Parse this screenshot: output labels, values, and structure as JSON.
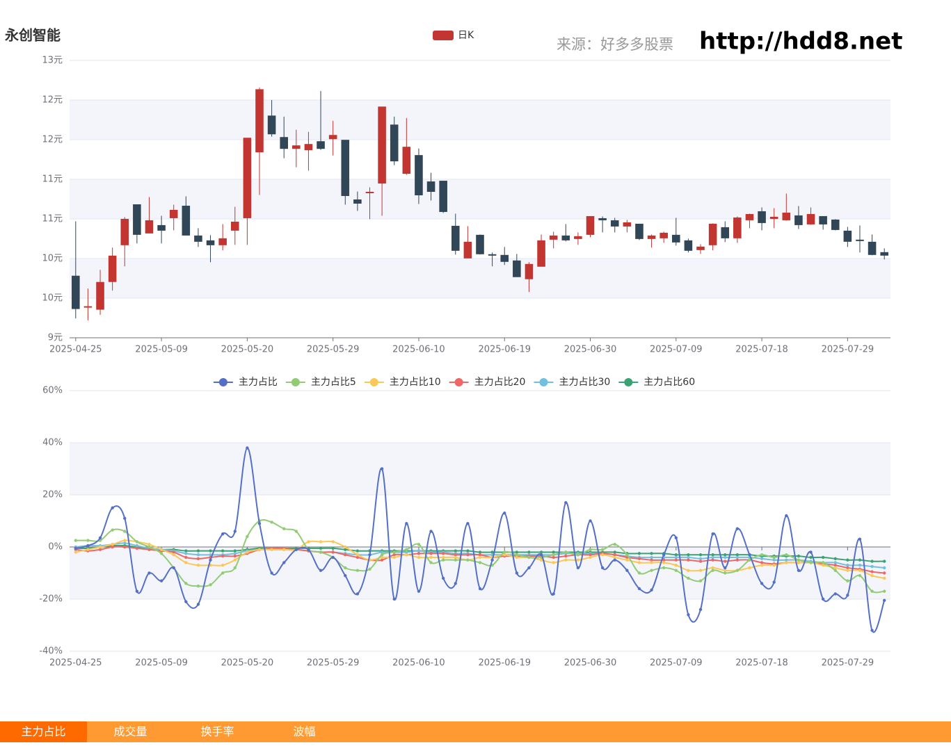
{
  "title": "永创智能",
  "source": "来源：好多多股票",
  "site": "http://hdd8.net",
  "tabs": [
    "主力占比",
    "成交量",
    "换手率",
    "波幅"
  ],
  "chart_data": [
    {
      "type": "candlestick",
      "categories": [
        "2025-04-25",
        null,
        null,
        null,
        null,
        null,
        null,
        "2025-05-09",
        null,
        null,
        null,
        null,
        null,
        null,
        "2025-05-20",
        null,
        null,
        null,
        null,
        null,
        null,
        "2025-05-29",
        null,
        null,
        null,
        null,
        null,
        null,
        "2025-06-10",
        null,
        null,
        null,
        null,
        null,
        null,
        "2025-06-19",
        null,
        null,
        null,
        null,
        null,
        null,
        "2025-06-30",
        null,
        null,
        null,
        null,
        null,
        null,
        "2025-07-09",
        null,
        null,
        null,
        null,
        null,
        null,
        "2025-07-18",
        null,
        null,
        null,
        null,
        null,
        null,
        "2025-07-29",
        null,
        null,
        null
      ],
      "series": [
        {
          "name": "日K",
          "up_color": "#c23531",
          "down_color": "#314656",
          "open": [
            9.89,
            9.44,
            9.41,
            9.81,
            10.34,
            10.92,
            10.51,
            10.62,
            10.73,
            10.9,
            10.47,
            10.4,
            10.34,
            10.55,
            10.73,
            11.68,
            12.2,
            11.89,
            11.73,
            11.71,
            11.83,
            11.87,
            11.85,
            10.99,
            11.09,
            11.23,
            12.07,
            11.37,
            11.63,
            11.25,
            11.26,
            10.61,
            10.15,
            10.48,
            10.2,
            10.19,
            10.11,
            9.85,
            10.03,
            10.42,
            10.47,
            10.43,
            10.49,
            10.72,
            10.69,
            10.61,
            10.64,
            10.43,
            10.44,
            10.48,
            10.4,
            10.27,
            10.34,
            10.59,
            10.44,
            10.7,
            10.82,
            10.72,
            10.7,
            10.76,
            10.64,
            10.75,
            10.7,
            10.54,
            10.41,
            10.38,
            10.23
          ],
          "high": [
            10.68,
            9.71,
            9.98,
            10.3,
            10.74,
            10.92,
            11.03,
            10.76,
            10.92,
            11.04,
            10.58,
            10.48,
            10.64,
            10.89,
            11.88,
            12.61,
            12.43,
            12.19,
            12.0,
            11.97,
            12.56,
            12.13,
            11.85,
            11.11,
            11.17,
            12.33,
            12.19,
            12.17,
            11.73,
            11.38,
            11.26,
            10.79,
            10.61,
            10.49,
            10.23,
            10.31,
            10.21,
            10.09,
            10.49,
            10.53,
            10.64,
            10.52,
            10.75,
            10.75,
            10.73,
            10.7,
            10.64,
            10.49,
            10.53,
            10.73,
            10.43,
            10.35,
            10.65,
            10.68,
            10.75,
            10.79,
            10.88,
            10.87,
            11.08,
            10.9,
            10.88,
            10.75,
            10.71,
            10.6,
            10.62,
            10.49,
            10.29
          ],
          "low": [
            9.28,
            9.25,
            9.33,
            9.68,
            10.03,
            10.36,
            10.51,
            10.36,
            10.55,
            10.48,
            10.31,
            10.09,
            10.26,
            10.34,
            10.34,
            11.06,
            11.9,
            11.59,
            11.46,
            11.41,
            11.71,
            11.63,
            10.92,
            10.83,
            10.71,
            10.76,
            11.49,
            11.35,
            10.93,
            10.98,
            10.8,
            10.2,
            10.15,
            10.2,
            10.03,
            10.05,
            9.88,
            9.66,
            10.03,
            10.29,
            10.39,
            10.34,
            10.45,
            10.52,
            10.52,
            10.52,
            10.41,
            10.3,
            10.37,
            10.33,
            10.23,
            10.21,
            10.26,
            10.38,
            10.37,
            10.58,
            10.55,
            10.58,
            10.69,
            10.57,
            10.63,
            10.56,
            10.55,
            10.31,
            10.23,
            10.19,
            10.13
          ],
          "close": [
            9.42,
            9.45,
            9.8,
            10.18,
            10.71,
            10.49,
            10.69,
            10.55,
            10.84,
            10.48,
            10.39,
            10.34,
            10.43,
            10.67,
            11.88,
            12.58,
            11.94,
            11.73,
            11.77,
            11.79,
            11.73,
            11.92,
            11.05,
            10.94,
            11.1,
            12.33,
            11.55,
            11.75,
            11.06,
            11.11,
            10.82,
            10.26,
            10.38,
            10.21,
            10.19,
            10.1,
            9.88,
            10.06,
            10.4,
            10.47,
            10.41,
            10.46,
            10.75,
            10.7,
            10.61,
            10.66,
            10.43,
            10.47,
            10.51,
            10.38,
            10.26,
            10.31,
            10.64,
            10.44,
            10.73,
            10.78,
            10.66,
            10.74,
            10.8,
            10.63,
            10.78,
            10.64,
            10.56,
            10.39,
            10.4,
            10.2,
            10.19
          ]
        }
      ],
      "ylim": [
        9,
        13
      ],
      "yticks": [
        {
          "value": 9,
          "label": "9元"
        },
        {
          "value": 9.5714,
          "label": "10元"
        },
        {
          "value": 10.1429,
          "label": "10元"
        },
        {
          "value": 10.7143,
          "label": "11元"
        },
        {
          "value": 11.2857,
          "label": "11元"
        },
        {
          "value": 11.8571,
          "label": "12元"
        },
        {
          "value": 12.4286,
          "label": "12元"
        },
        {
          "value": 13,
          "label": "13元"
        }
      ],
      "grid": true
    },
    {
      "type": "line",
      "categories": [
        "2025-04-25",
        null,
        null,
        null,
        null,
        null,
        null,
        "2025-05-09",
        null,
        null,
        null,
        null,
        null,
        null,
        "2025-05-20",
        null,
        null,
        null,
        null,
        null,
        null,
        "2025-05-29",
        null,
        null,
        null,
        null,
        null,
        null,
        "2025-06-10",
        null,
        null,
        null,
        null,
        null,
        null,
        "2025-06-19",
        null,
        null,
        null,
        null,
        null,
        null,
        "2025-06-30",
        null,
        null,
        null,
        null,
        null,
        null,
        "2025-07-09",
        null,
        null,
        null,
        null,
        null,
        null,
        "2025-07-18",
        null,
        null,
        null,
        null,
        null,
        null,
        "2025-07-29",
        null,
        null,
        null
      ],
      "series": [
        {
          "name": "主力占比",
          "color": "#5470c6",
          "values": [
            -0.5,
            0.5,
            3.5,
            15,
            11,
            -17,
            -10,
            -13,
            -8,
            -21,
            -22,
            -5,
            5,
            6,
            38,
            9,
            -10,
            -6,
            -1,
            -1,
            -9,
            -4,
            -11,
            -18,
            -3,
            30,
            -20,
            9,
            -17,
            6,
            -12,
            -14,
            9,
            -16,
            -5,
            13,
            -10,
            -8,
            -3,
            -18,
            17,
            -8,
            10,
            -8,
            -5,
            -9,
            -16,
            -16.5,
            -3,
            3.5,
            -26,
            -24,
            5,
            -8,
            7,
            -3,
            -14,
            -13.5,
            12,
            -9,
            -2,
            -20,
            -18,
            -18.5,
            3,
            -32,
            -20.5
          ]
        },
        {
          "name": "主力占比5",
          "color": "#91cc75",
          "values": [
            2.5,
            2.5,
            2.5,
            6.5,
            6,
            2,
            0,
            -2.5,
            -8,
            -14,
            -15,
            -14.5,
            -10,
            -8,
            4,
            10,
            9.5,
            7,
            6,
            -1,
            -2,
            -4,
            -8,
            -9,
            -8.5,
            -3,
            -2,
            -1,
            1,
            -6,
            -5,
            -5,
            -5,
            -6,
            -7,
            -2,
            -3,
            -4,
            -4,
            -3,
            -2,
            -3,
            -1,
            -1,
            1,
            -3,
            -10,
            -9,
            -8,
            -9,
            -12,
            -13,
            -9,
            -10,
            -9,
            -5,
            -3,
            -4,
            -3,
            -5,
            -6,
            -6,
            -9,
            -13,
            -11,
            -17,
            -17
          ]
        },
        {
          "name": "主力占比10",
          "color": "#fac858",
          "values": [
            -2,
            -1,
            0,
            1,
            2.5,
            2,
            1,
            -1,
            -3,
            -6,
            -7,
            -7,
            -7,
            -5,
            -2,
            -1,
            -1,
            -1,
            -1,
            2,
            2,
            2,
            0,
            -3,
            -5,
            -4,
            -4,
            -3,
            -4,
            -4,
            -4,
            -4,
            -5,
            -4,
            -4,
            -3,
            -4,
            -4,
            -5,
            -6,
            -5,
            -5,
            -4,
            -3,
            -4,
            -5,
            -6,
            -6,
            -6,
            -7,
            -9,
            -9,
            -8,
            -9,
            -9,
            -8,
            -7,
            -7,
            -6,
            -6,
            -6,
            -7,
            -8,
            -9,
            -9,
            -11,
            -12
          ]
        },
        {
          "name": "主力占比20",
          "color": "#ee6666",
          "values": [
            -1,
            -1.5,
            -1,
            0,
            0,
            -0.5,
            -1,
            -1.5,
            -2,
            -4,
            -4.5,
            -4,
            -3.5,
            -3.5,
            -2.5,
            -1,
            -0.5,
            -0.5,
            -1,
            -1.5,
            -2,
            -2,
            -3,
            -4,
            -5,
            -5,
            -3,
            -3,
            -2.5,
            -2.5,
            -2.5,
            -3,
            -3,
            -3,
            -4,
            -3.5,
            -3.5,
            -3.5,
            -3.5,
            -4,
            -3.5,
            -3,
            -3,
            -2.5,
            -3,
            -4,
            -4.5,
            -5,
            -5,
            -5,
            -5,
            -5.5,
            -5,
            -5.5,
            -5,
            -5,
            -6,
            -6.5,
            -6,
            -6,
            -6,
            -6.5,
            -7,
            -8,
            -8.5,
            -9.5,
            -10
          ]
        },
        {
          "name": "主力占比30",
          "color": "#73c0de",
          "values": [
            0,
            0.5,
            0.5,
            1,
            1.5,
            0.5,
            -0.5,
            -1,
            -1.5,
            -2.5,
            -3,
            -3,
            -3,
            -2.5,
            -1.5,
            -1,
            -1,
            -1,
            -1,
            -1.5,
            -2,
            -2,
            -2.5,
            -3,
            -3,
            -2,
            -2,
            -2,
            -1.5,
            -2,
            -2,
            -2.5,
            -2.5,
            -3,
            -3,
            -3,
            -3,
            -3,
            -3,
            -3,
            -2.5,
            -2.5,
            -2.5,
            -2.5,
            -3,
            -3.5,
            -4,
            -4,
            -4,
            -4,
            -4,
            -4.5,
            -4,
            -4,
            -4,
            -4,
            -4.5,
            -5,
            -5,
            -5,
            -5.5,
            -6,
            -6,
            -7,
            -7,
            -7.5,
            -8
          ]
        },
        {
          "name": "主力占比60",
          "color": "#3ba272",
          "values": [
            -0.5,
            -0.5,
            0,
            0.5,
            0.5,
            0,
            -0.5,
            -1,
            -1,
            -1.5,
            -1.5,
            -1.5,
            -1.5,
            -1.5,
            -1,
            -0.5,
            -0.5,
            -0.5,
            -0.5,
            -0.5,
            -0.5,
            -0.5,
            -1,
            -1.5,
            -1.5,
            -1.5,
            -1.5,
            -1.5,
            -1.5,
            -1.5,
            -1.5,
            -1.5,
            -1.5,
            -2,
            -2,
            -2,
            -2,
            -2,
            -2,
            -2,
            -2,
            -2,
            -2,
            -2,
            -2,
            -2.5,
            -2.5,
            -2.5,
            -2.5,
            -3,
            -3,
            -3,
            -3,
            -3,
            -3,
            -3,
            -3.5,
            -3.5,
            -3.5,
            -3.5,
            -4,
            -4,
            -4.5,
            -5,
            -5,
            -5.5,
            -5.5
          ]
        }
      ],
      "ylim": [
        -40,
        60
      ],
      "yticks": [
        {
          "value": -40,
          "label": "-40%"
        },
        {
          "value": -20,
          "label": "-20%"
        },
        {
          "value": 0,
          "label": "0%"
        },
        {
          "value": 20,
          "label": "20%"
        },
        {
          "value": 40,
          "label": "40%"
        },
        {
          "value": 60,
          "label": "60%"
        }
      ],
      "grid": true
    }
  ]
}
